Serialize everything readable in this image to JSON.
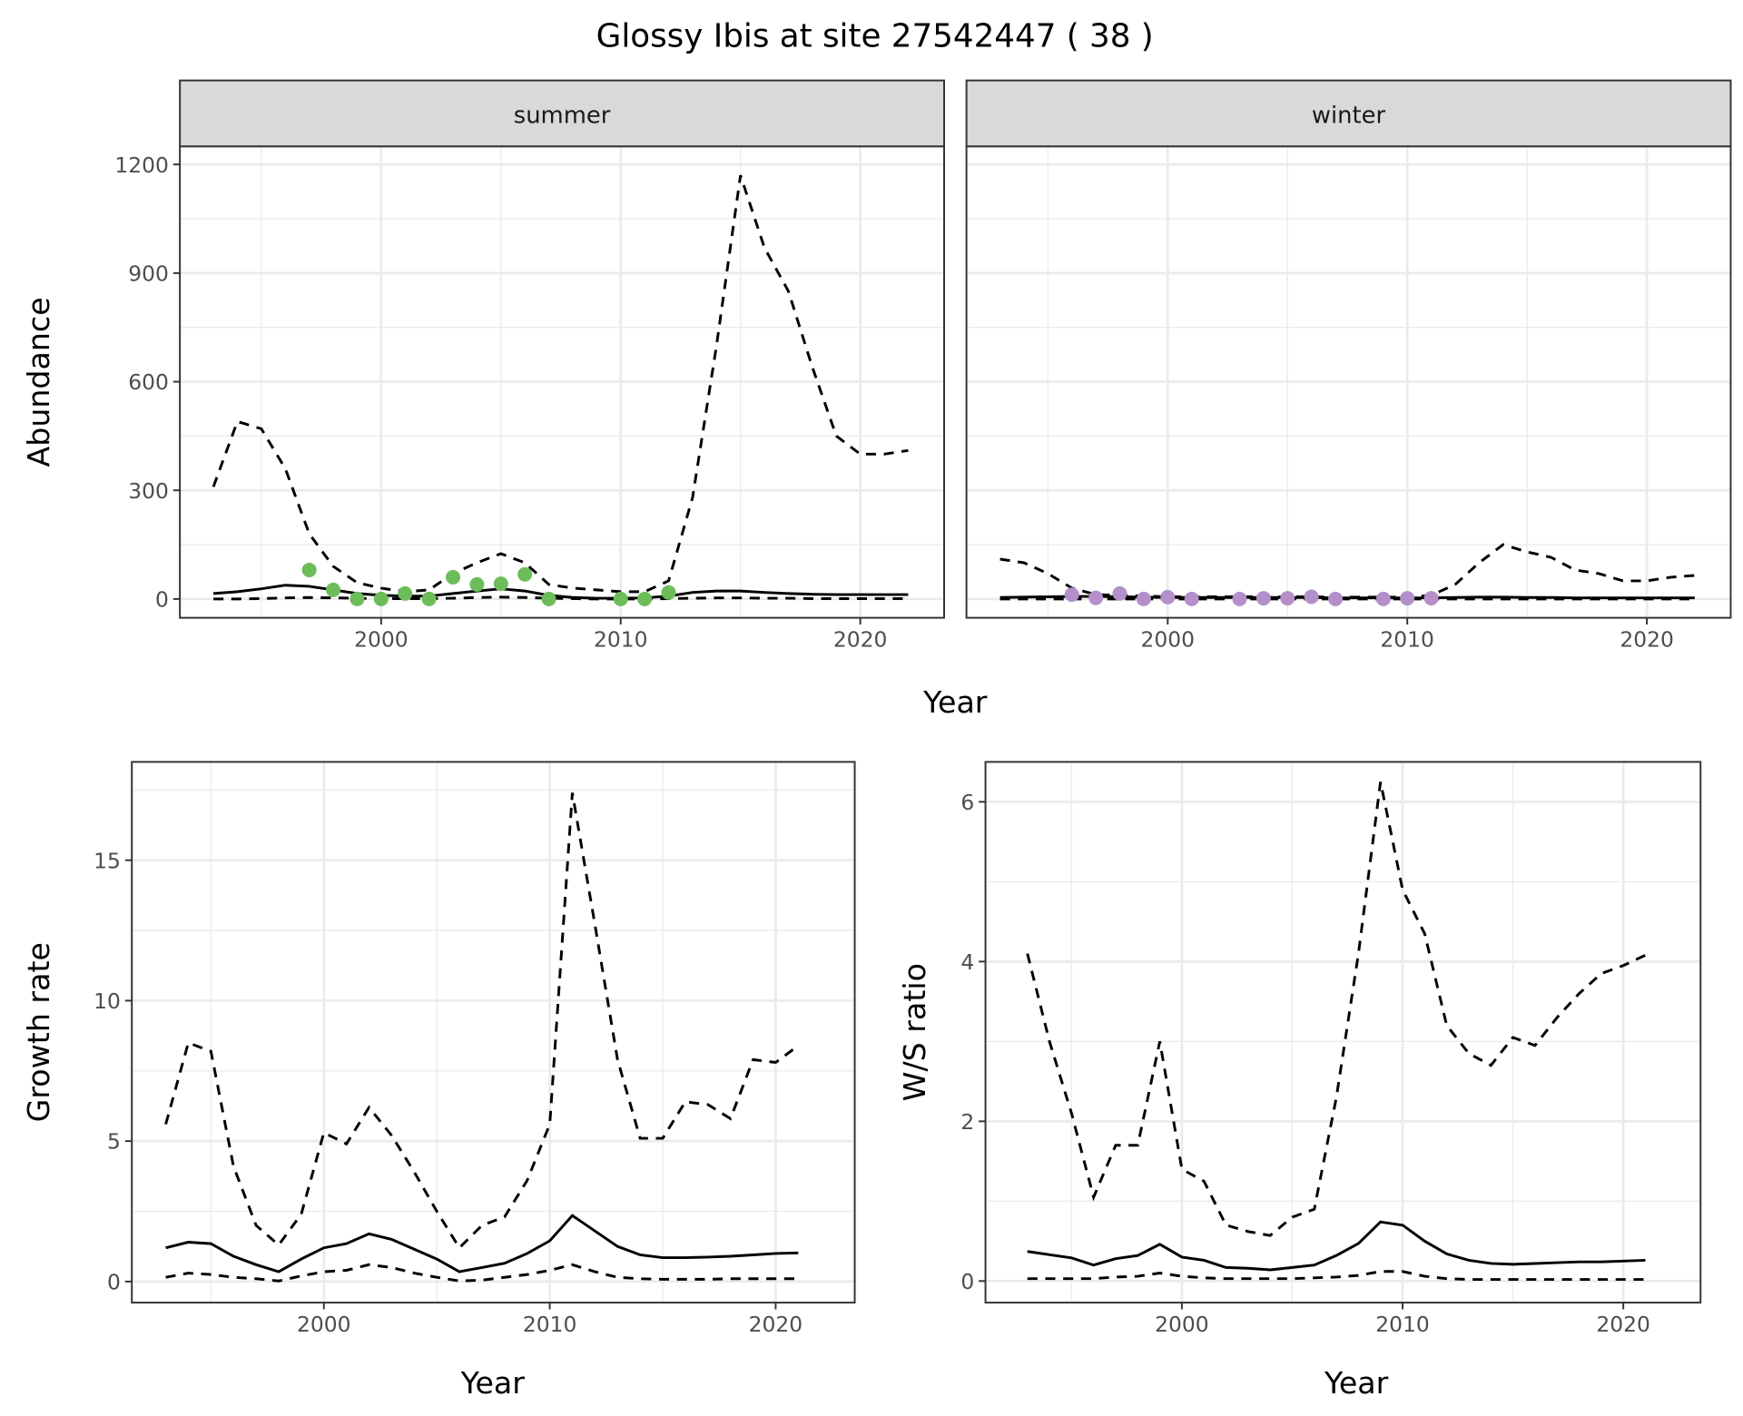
{
  "title": "Glossy Ibis at site 27542447 ( 38 )",
  "chart_data": [
    {
      "type": "line",
      "id": "abundance",
      "ylabel": "Abundance",
      "xlabel": "Year",
      "xlim": [
        1991.6,
        2023.5
      ],
      "ylim": [
        -52,
        1250
      ],
      "xticks": [
        2000,
        2010,
        2020
      ],
      "yticks": [
        0,
        300,
        600,
        900,
        1200
      ],
      "grid": true,
      "facets": [
        {
          "label": "summer",
          "point_color": "#6cbd5a",
          "x": [
            1993,
            1994,
            1995,
            1996,
            1997,
            1998,
            1999,
            2000,
            2001,
            2002,
            2003,
            2004,
            2005,
            2006,
            2007,
            2008,
            2009,
            2010,
            2011,
            2012,
            2013,
            2014,
            2015,
            2016,
            2017,
            2018,
            2019,
            2020,
            2021,
            2022
          ],
          "series": [
            {
              "name": "mean",
              "style": "solid",
              "values": [
                15,
                20,
                28,
                38,
                35,
                25,
                15,
                10,
                8,
                8,
                15,
                22,
                28,
                22,
                10,
                4,
                2,
                2,
                3,
                8,
                18,
                22,
                22,
                18,
                15,
                13,
                12,
                12,
                12,
                12
              ]
            },
            {
              "name": "upper",
              "style": "dashed",
              "values": [
                310,
                490,
                470,
                360,
                180,
                90,
                45,
                30,
                20,
                25,
                70,
                100,
                125,
                100,
                40,
                30,
                25,
                20,
                20,
                50,
                280,
                700,
                1170,
                970,
                850,
                640,
                450,
                400,
                400,
                410
              ]
            },
            {
              "name": "lower",
              "style": "dashed",
              "values": [
                0,
                0,
                1,
                3,
                4,
                3,
                2,
                1,
                1,
                1,
                2,
                4,
                5,
                4,
                2,
                1,
                0,
                0,
                0,
                1,
                2,
                3,
                3,
                2,
                2,
                1,
                1,
                1,
                1,
                1
              ]
            }
          ],
          "points": {
            "x": [
              1997,
              1998,
              1999,
              2000,
              2001,
              2002,
              2003,
              2004,
              2005,
              2006,
              2007,
              2010,
              2011,
              2012
            ],
            "y": [
              80,
              25,
              0,
              0,
              15,
              0,
              60,
              40,
              42,
              68,
              0,
              0,
              0,
              18
            ]
          }
        },
        {
          "label": "winter",
          "point_color": "#b58fc9",
          "x": [
            1993,
            1994,
            1995,
            1996,
            1997,
            1998,
            1999,
            2000,
            2001,
            2002,
            2003,
            2004,
            2005,
            2006,
            2007,
            2008,
            2009,
            2010,
            2011,
            2012,
            2013,
            2014,
            2015,
            2016,
            2017,
            2018,
            2019,
            2020,
            2021,
            2022
          ],
          "series": [
            {
              "name": "mean",
              "style": "solid",
              "values": [
                4,
                5,
                6,
                7,
                7,
                6,
                5,
                4,
                4,
                4,
                4,
                4,
                4,
                4,
                3,
                3,
                3,
                3,
                3,
                4,
                5,
                5,
                4,
                4,
                3,
                3,
                3,
                3,
                3,
                3
              ]
            },
            {
              "name": "upper",
              "style": "dashed",
              "values": [
                110,
                100,
                70,
                30,
                12,
                10,
                8,
                6,
                6,
                6,
                6,
                6,
                6,
                6,
                5,
                5,
                5,
                5,
                10,
                40,
                100,
                150,
                130,
                115,
                80,
                70,
                50,
                50,
                60,
                65
              ]
            },
            {
              "name": "lower",
              "style": "dashed",
              "values": [
                0,
                0,
                0,
                0,
                0,
                0,
                0,
                0,
                0,
                0,
                0,
                0,
                0,
                0,
                0,
                0,
                0,
                0,
                0,
                0,
                0,
                0,
                0,
                0,
                0,
                0,
                0,
                0,
                0,
                0
              ]
            }
          ],
          "points": {
            "x": [
              1996,
              1997,
              1998,
              1999,
              2000,
              2001,
              2003,
              2004,
              2005,
              2006,
              2007,
              2009,
              2010,
              2011
            ],
            "y": [
              12,
              3,
              15,
              0,
              5,
              0,
              0,
              2,
              2,
              6,
              0,
              0,
              2,
              2
            ]
          }
        }
      ]
    },
    {
      "type": "line",
      "id": "growth",
      "ylabel": "Growth rate",
      "xlabel": "Year",
      "xlim": [
        1991.5,
        2023.5
      ],
      "ylim": [
        -0.75,
        18.5
      ],
      "xticks": [
        2000,
        2010,
        2020
      ],
      "yticks": [
        0,
        5,
        10,
        15
      ],
      "grid": true,
      "x": [
        1993,
        1994,
        1995,
        1996,
        1997,
        1998,
        1999,
        2000,
        2001,
        2002,
        2003,
        2004,
        2005,
        2006,
        2007,
        2008,
        2009,
        2010,
        2011,
        2012,
        2013,
        2014,
        2015,
        2016,
        2017,
        2018,
        2019,
        2020,
        2021
      ],
      "series": [
        {
          "name": "mean",
          "style": "solid",
          "values": [
            1.2,
            1.4,
            1.35,
            0.9,
            0.6,
            0.35,
            0.8,
            1.2,
            1.35,
            1.7,
            1.5,
            1.15,
            0.8,
            0.35,
            0.5,
            0.65,
            1.0,
            1.45,
            2.35,
            1.8,
            1.25,
            0.95,
            0.85,
            0.85,
            0.87,
            0.9,
            0.95,
            1.0,
            1.02
          ]
        },
        {
          "name": "upper",
          "style": "dashed",
          "values": [
            5.6,
            8.5,
            8.2,
            4.1,
            2.0,
            1.3,
            2.4,
            5.3,
            4.9,
            6.2,
            5.2,
            3.9,
            2.5,
            1.2,
            2.0,
            2.3,
            3.6,
            5.6,
            17.4,
            12.7,
            7.9,
            5.1,
            5.1,
            6.4,
            6.3,
            5.8,
            7.9,
            7.8,
            8.4
          ]
        },
        {
          "name": "lower",
          "style": "dashed",
          "values": [
            0.15,
            0.3,
            0.25,
            0.15,
            0.1,
            0.02,
            0.2,
            0.35,
            0.4,
            0.6,
            0.5,
            0.3,
            0.15,
            0.02,
            0.05,
            0.15,
            0.25,
            0.4,
            0.6,
            0.35,
            0.15,
            0.1,
            0.08,
            0.08,
            0.08,
            0.1,
            0.1,
            0.1,
            0.1
          ]
        }
      ]
    },
    {
      "type": "line",
      "id": "ratio",
      "ylabel": "W/S ratio",
      "xlabel": "Year",
      "xlim": [
        1991.1,
        2023.5
      ],
      "ylim": [
        -0.27,
        6.5
      ],
      "xticks": [
        2000,
        2010,
        2020
      ],
      "yticks": [
        0,
        2,
        4,
        6
      ],
      "grid": true,
      "x": [
        1993,
        1994,
        1995,
        1996,
        1997,
        1998,
        1999,
        2000,
        2001,
        2002,
        2003,
        2004,
        2005,
        2006,
        2007,
        2008,
        2009,
        2010,
        2011,
        2012,
        2013,
        2014,
        2015,
        2016,
        2017,
        2018,
        2019,
        2020,
        2021
      ],
      "series": [
        {
          "name": "mean",
          "style": "solid",
          "values": [
            0.37,
            0.33,
            0.29,
            0.2,
            0.28,
            0.32,
            0.46,
            0.3,
            0.26,
            0.17,
            0.16,
            0.14,
            0.17,
            0.2,
            0.32,
            0.47,
            0.74,
            0.7,
            0.5,
            0.34,
            0.26,
            0.22,
            0.21,
            0.22,
            0.23,
            0.24,
            0.24,
            0.25,
            0.26
          ]
        },
        {
          "name": "upper",
          "style": "dashed",
          "values": [
            4.1,
            3.0,
            2.1,
            1.05,
            1.7,
            1.7,
            3.0,
            1.4,
            1.25,
            0.7,
            0.62,
            0.57,
            0.8,
            0.9,
            2.3,
            4.1,
            6.25,
            4.9,
            4.35,
            3.2,
            2.85,
            2.7,
            3.05,
            2.95,
            3.3,
            3.6,
            3.85,
            3.95,
            4.08
          ]
        },
        {
          "name": "lower",
          "style": "dashed",
          "values": [
            0.03,
            0.03,
            0.03,
            0.03,
            0.05,
            0.06,
            0.1,
            0.06,
            0.04,
            0.03,
            0.03,
            0.03,
            0.03,
            0.04,
            0.05,
            0.07,
            0.12,
            0.12,
            0.06,
            0.03,
            0.02,
            0.02,
            0.02,
            0.02,
            0.02,
            0.02,
            0.02,
            0.02,
            0.02
          ]
        }
      ]
    }
  ]
}
